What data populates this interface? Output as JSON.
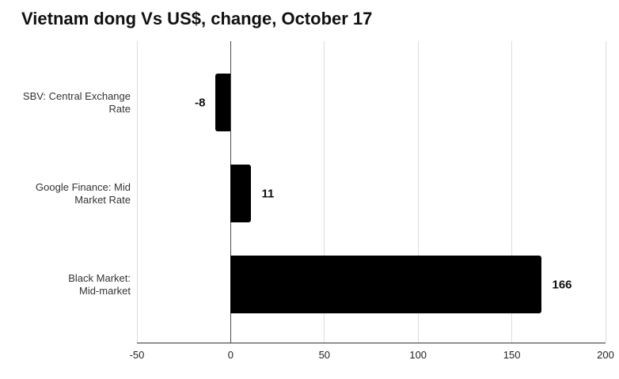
{
  "chart_data": {
    "type": "bar",
    "orientation": "horizontal",
    "title": "Vietnam dong Vs US$, change, October 17",
    "categories": [
      "SBV: Central Exchange Rate",
      "Google Finance: Mid Market Rate",
      "Black Market: Mid-market"
    ],
    "category_lines": [
      [
        "SBV: Central Exchange",
        "Rate"
      ],
      [
        "Google Finance: Mid",
        "Market Rate"
      ],
      [
        "Black Market:",
        "Mid-market"
      ]
    ],
    "values": [
      -8,
      11,
      166
    ],
    "value_labels": [
      "-8",
      "11",
      "166"
    ],
    "xlabel": "",
    "ylabel": "",
    "xlim": [
      -50,
      200
    ],
    "xtick_values": [
      -50,
      0,
      50,
      100,
      150,
      200
    ],
    "xtick_labels": [
      "-50",
      "0",
      "50",
      "100",
      "150",
      "200"
    ],
    "grid": true,
    "legend": false,
    "colors": {
      "bar": "#000000",
      "gridline": "#dddddd",
      "zero_line": "#4d4d4d",
      "axis_line": "#333333",
      "title_text": "#111111",
      "category_text": "#333333",
      "value_text": "#111111",
      "tick_text": "#222222",
      "background": "#ffffff"
    }
  }
}
